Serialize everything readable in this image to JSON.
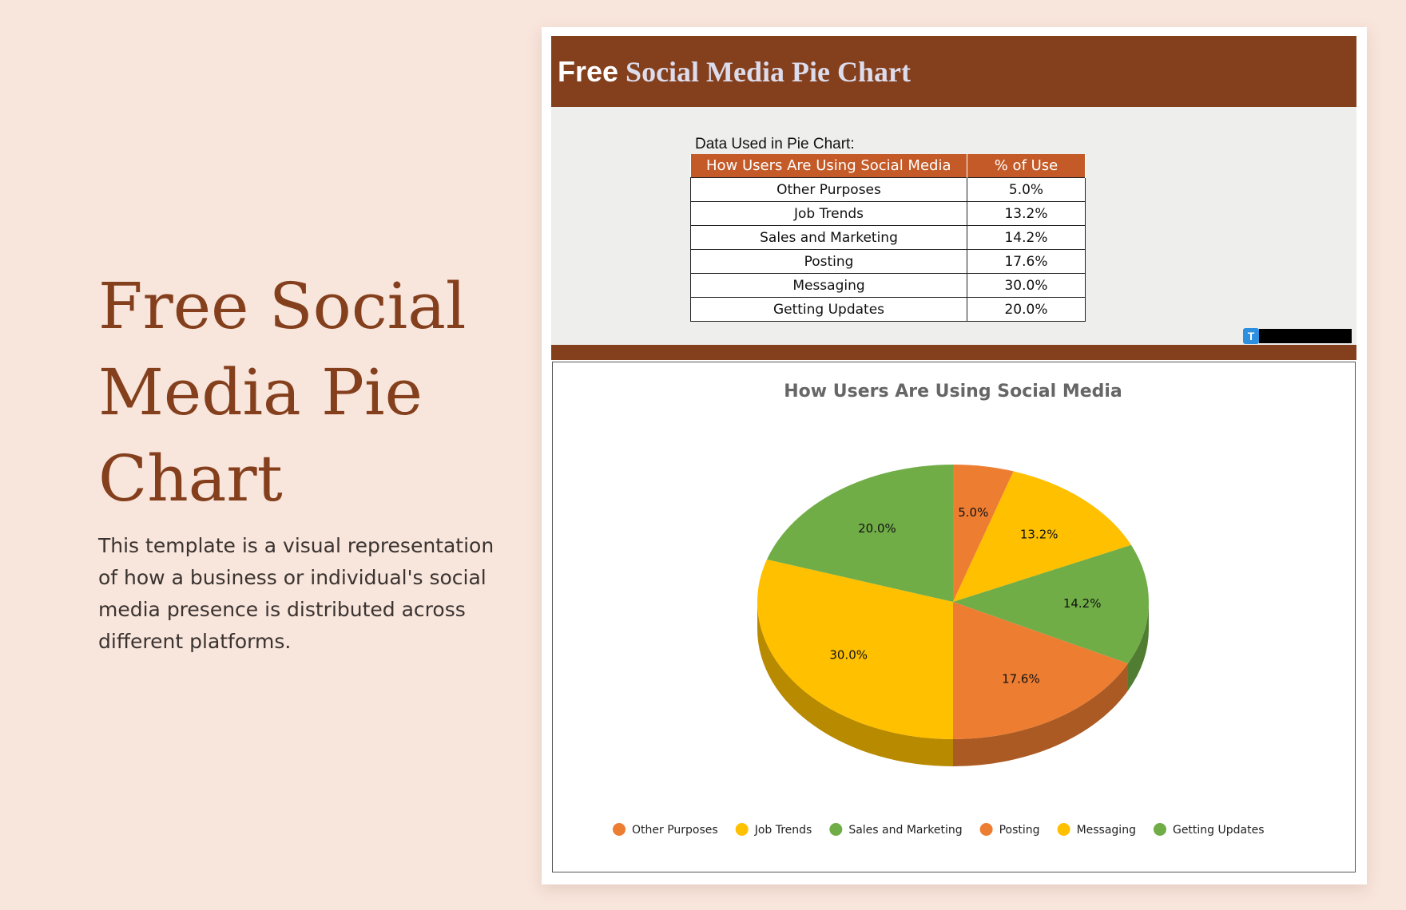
{
  "left": {
    "title": "Free Social Media Pie Chart",
    "description": "This template is a visual representation of how a business or individual's social media presence is distributed across different platforms."
  },
  "banner": {
    "title_free": "Free",
    "title_rest": "Social Media Pie Chart",
    "color": "#843f1d"
  },
  "data_section": {
    "caption": "Data Used in Pie Chart:",
    "headers": [
      "How Users Are Using Social Media",
      "% of Use"
    ],
    "rows": [
      [
        "Other Purposes",
        "5.0%"
      ],
      [
        "Job Trends",
        "13.2%"
      ],
      [
        "Sales and Marketing",
        "14.2%"
      ],
      [
        "Posting",
        "17.6%"
      ],
      [
        "Messaging",
        "30.0%"
      ],
      [
        "Getting Updates",
        "20.0%"
      ]
    ],
    "logo_letter": "T"
  },
  "chart_data": {
    "type": "pie",
    "title": "How Users Are Using Social Media",
    "categories": [
      "Other Purposes",
      "Job Trends",
      "Sales and Marketing",
      "Posting",
      "Messaging",
      "Getting Updates"
    ],
    "values": [
      5.0,
      13.2,
      14.2,
      17.6,
      30.0,
      20.0
    ],
    "data_labels": [
      "5.0%",
      "13.2%",
      "14.2%",
      "17.6%",
      "30.0%",
      "20.0%"
    ],
    "colors": [
      "#ed7d31",
      "#ffc000",
      "#70ad47",
      "#ed7d31",
      "#ffc000",
      "#70ad47"
    ],
    "legend_position": "bottom",
    "style": "3d"
  }
}
